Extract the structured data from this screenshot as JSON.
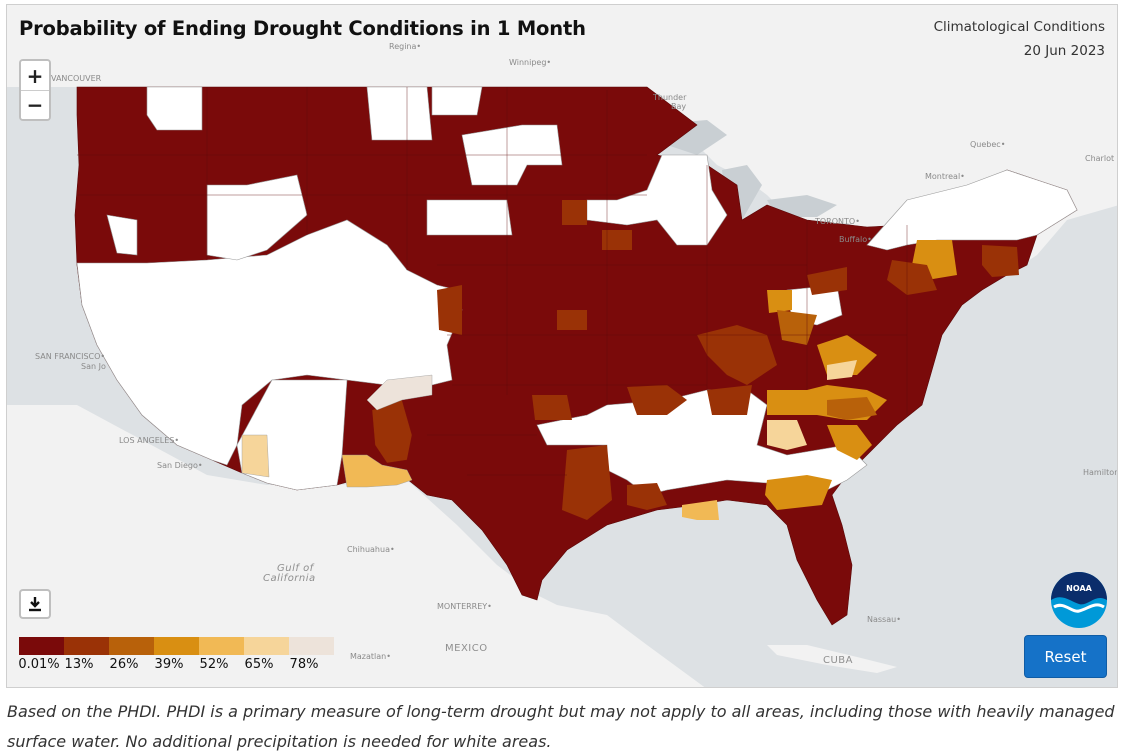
{
  "map": {
    "title": "Probability of Ending Drought Conditions in 1 Month",
    "info_line1": "Climatological Conditions",
    "info_line2": "20 Jun 2023",
    "zoom_in_label": "+",
    "zoom_out_label": "−",
    "reset_label": "Reset",
    "download_icon": "download-icon",
    "logo_text": "NOAA"
  },
  "legend": {
    "colors": [
      "#7a0a0a",
      "#9a3206",
      "#b8610a",
      "#d98f12",
      "#f1b955",
      "#f6d59a",
      "#ede3da"
    ],
    "labels": [
      "0.01%",
      "13%",
      "26%",
      "39%",
      "52%",
      "65%",
      "78%"
    ]
  },
  "places": [
    "Regina",
    "Winnipeg",
    "VANCOUVER",
    "Thunder Bay",
    "Quebec",
    "Charlot",
    "Montreal",
    "TORONTO",
    "Buffalo",
    "SAN FRANCISCO",
    "San Jo",
    "LOS ANGELES",
    "San Diego",
    "Chihuahua",
    "Gulf of California",
    "MONTERREY",
    "MEXICO",
    "Mazatlan",
    "Nassau",
    "CUBA",
    "Hamilton"
  ],
  "caption": "Based on the PHDI. PHDI is a primary measure of long-term drought but may not apply to all areas, including those with heavily managed surface water. No additional precipitation is needed for white areas."
}
